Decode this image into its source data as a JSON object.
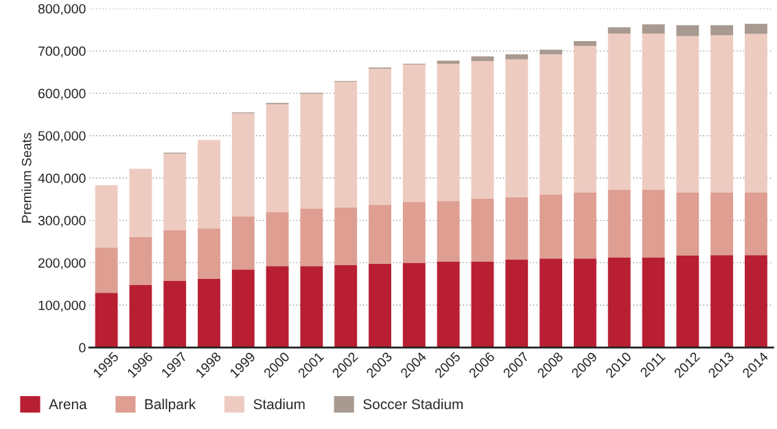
{
  "chart_data": {
    "type": "bar",
    "stacked": true,
    "ylabel": "Premium Seats",
    "categories": [
      "1995",
      "1996",
      "1997",
      "1998",
      "1999",
      "2000",
      "2001",
      "2002",
      "2003",
      "2004",
      "2005",
      "2006",
      "2007",
      "2008",
      "2009",
      "2010",
      "2011",
      "2012",
      "2013",
      "2014"
    ],
    "series": [
      {
        "name": "Arena",
        "color": "#b81f33",
        "values": [
          129000,
          148000,
          157000,
          162000,
          184000,
          192000,
          192000,
          195000,
          198000,
          200000,
          203000,
          203000,
          208000,
          210000,
          210000,
          213000,
          213000,
          217000,
          218000,
          218000
        ]
      },
      {
        "name": "Ballpark",
        "color": "#de9e92",
        "values": [
          107000,
          113000,
          120000,
          119000,
          125000,
          128000,
          136000,
          135000,
          139000,
          143000,
          143000,
          148000,
          147000,
          151000,
          156000,
          160000,
          160000,
          149000,
          148000,
          148000
        ]
      },
      {
        "name": "Stadium",
        "color": "#eecbc1",
        "values": [
          147000,
          161000,
          181000,
          209000,
          244000,
          254000,
          271000,
          297000,
          321000,
          325000,
          324000,
          325000,
          325000,
          331000,
          346000,
          368000,
          368000,
          369000,
          371000,
          374000
        ]
      },
      {
        "name": "Soccer Stadium",
        "color": "#a89a90",
        "values": [
          0,
          0,
          2000,
          0,
          2000,
          3000,
          2000,
          2000,
          3000,
          2000,
          7000,
          11000,
          12000,
          11000,
          11000,
          15000,
          22000,
          26000,
          24000,
          24000
        ]
      }
    ],
    "ylim": [
      0,
      800000
    ],
    "yticks": [
      {
        "value": 0,
        "label": "0"
      },
      {
        "value": 100000,
        "label": "100,000"
      },
      {
        "value": 200000,
        "label": "200,000"
      },
      {
        "value": 300000,
        "label": "300,000"
      },
      {
        "value": 400000,
        "label": "400,000"
      },
      {
        "value": 500000,
        "label": "500,000"
      },
      {
        "value": 600000,
        "label": "600,000"
      },
      {
        "value": 700000,
        "label": "700,000"
      },
      {
        "value": 800000,
        "label": "800,000"
      }
    ],
    "grid": "y",
    "legend": "bottom left"
  }
}
